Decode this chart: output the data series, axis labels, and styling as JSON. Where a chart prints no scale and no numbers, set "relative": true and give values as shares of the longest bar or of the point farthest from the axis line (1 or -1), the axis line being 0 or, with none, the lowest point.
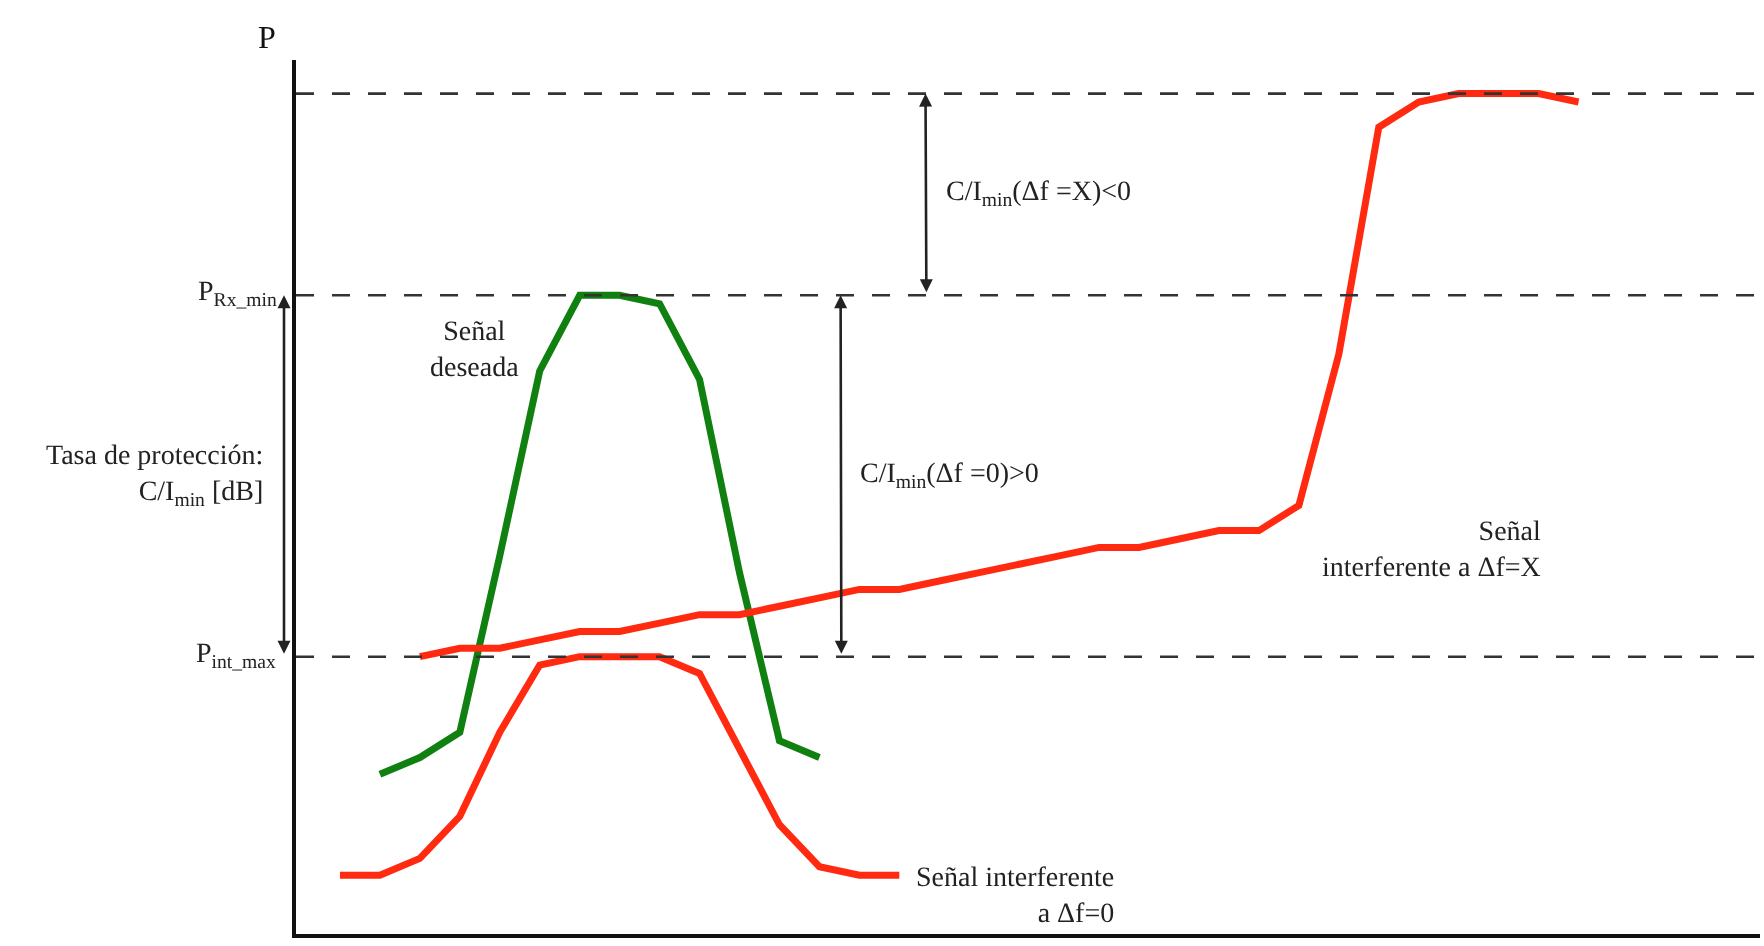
{
  "chart_data": {
    "type": "line",
    "relative": true,
    "ylabel": "P",
    "legend": false,
    "marker": "none",
    "line_style": "solid",
    "categories": [
      null,
      null,
      null,
      null,
      null,
      null,
      null,
      null,
      null,
      null,
      null,
      null,
      null,
      null,
      null,
      null,
      null,
      null,
      null,
      null,
      null,
      null,
      null,
      null,
      null,
      null,
      null,
      null,
      null,
      null,
      null,
      null,
      null
    ],
    "series": [
      {
        "name": "Señal\ndeseada",
        "color": "#108010",
        "values": [
          null,
          0.19,
          0.21,
          0.24,
          0.45,
          0.67,
          0.76,
          0.76,
          0.75,
          0.66,
          0.43,
          0.23,
          0.21,
          null,
          null,
          null,
          null,
          null,
          null,
          null,
          null,
          null,
          null,
          null,
          null,
          null,
          null,
          null,
          null,
          null,
          null,
          null,
          null
        ]
      },
      {
        "name": "Señal interferente\na Δf=0",
        "color": "#ff2a10",
        "values": [
          0.07,
          0.07,
          0.09,
          0.14,
          0.24,
          0.32,
          0.33,
          0.33,
          0.33,
          0.31,
          0.22,
          0.13,
          0.08,
          0.07,
          0.07,
          null,
          null,
          null,
          null,
          null,
          null,
          null,
          null,
          null,
          null,
          null,
          null,
          null,
          null,
          null,
          null,
          null,
          null
        ]
      },
      {
        "name": "Señal\ninterferente a Δf=X",
        "color": "#ff2a10",
        "values": [
          null,
          null,
          0.33,
          0.34,
          0.34,
          0.35,
          0.36,
          0.36,
          0.37,
          0.38,
          0.38,
          0.39,
          0.4,
          0.41,
          0.41,
          0.42,
          0.43,
          0.44,
          0.45,
          0.46,
          0.46,
          0.47,
          0.48,
          0.48,
          0.51,
          0.69,
          0.96,
          0.99,
          1.0,
          1.0,
          1.0,
          0.99,
          null
        ]
      }
    ],
    "ref_lines": [
      {
        "axis": "y",
        "value": 0.76,
        "label": "P$_{Rx_min}$",
        "color": "#333333",
        "line_style": "dashed"
      },
      {
        "axis": "y",
        "value": 0.33,
        "label": "P$_{int_max}$",
        "color": "#333333",
        "line_style": "dashed"
      },
      {
        "axis": "y",
        "value": 1.0,
        "color": "#333333",
        "line_style": "dashed"
      }
    ],
    "annotations": [
      "C/I$_{min}$(Δf =X)<0",
      "C/I$_{min}$(Δf =0)>0",
      "Tasa de protección:\nC/I$_{min}$ [dB]"
    ]
  }
}
